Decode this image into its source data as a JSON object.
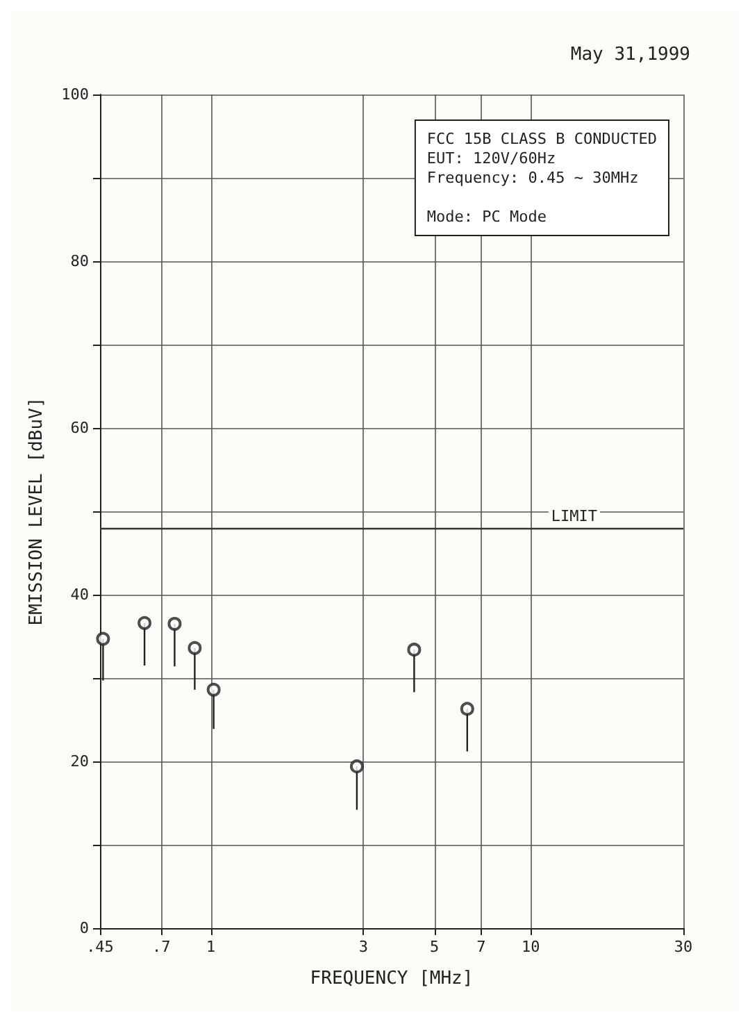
{
  "chart_data": {
    "type": "scatter",
    "subtitle": "May 31,1999",
    "xlabel": "FREQUENCY [MHz]",
    "ylabel": "EMISSION LEVEL [dBuV]",
    "annotations": [
      "FCC 15B CLASS B CONDUCTED",
      "EUT: 120V/60Hz",
      "Frequency: 0.45 ~ 30MHz",
      "Mode: PC Mode"
    ],
    "x": [
      0.46,
      0.62,
      0.77,
      0.89,
      1.02,
      2.86,
      4.32,
      6.33
    ],
    "values": [
      34.7,
      36.6,
      36.5,
      33.6,
      28.6,
      19.4,
      33.4,
      26.3
    ],
    "errors": [
      [
        29.7,
        34.7
      ],
      [
        31.5,
        36.6
      ],
      [
        31.4,
        36.5
      ],
      [
        28.6,
        33.6
      ],
      [
        23.9,
        28.6
      ],
      [
        14.2,
        19.4
      ],
      [
        28.3,
        33.4
      ],
      [
        21.2,
        26.3
      ]
    ],
    "color": "#222222",
    "marker": "circle",
    "log": "x",
    "xlim": [
      0.45,
      30
    ],
    "xticks": [
      {
        "value": 0.45,
        "label": ".45"
      },
      {
        "value": 0.7,
        "label": ".7"
      },
      1,
      3,
      5,
      7,
      10,
      30
    ],
    "ylim": [
      0,
      100
    ],
    "yticks": [
      0,
      {
        "value": 10,
        "label": null
      },
      20,
      {
        "value": 30,
        "label": null
      },
      40,
      {
        "value": 50,
        "label": null
      },
      60,
      {
        "value": 70,
        "label": null
      },
      80,
      {
        "value": 90,
        "label": null
      },
      100
    ],
    "ref_lines": [
      {
        "axis": "y",
        "value": 48,
        "label": "LIMIT",
        "color": "#333333"
      }
    ],
    "grid": true
  }
}
